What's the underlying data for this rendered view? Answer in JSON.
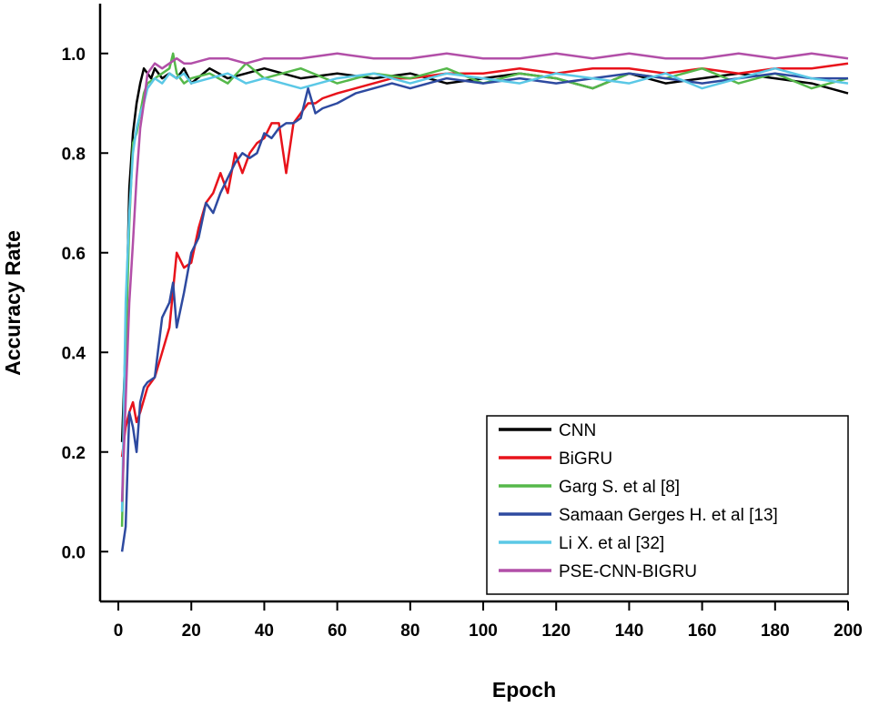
{
  "chart_data": {
    "type": "line",
    "title": "",
    "xlabel": "Epoch",
    "ylabel": "Accuracy Rate",
    "xlim": [
      -5,
      200
    ],
    "ylim": [
      -0.1,
      1.1
    ],
    "xticks": [
      0,
      20,
      40,
      60,
      80,
      100,
      120,
      140,
      160,
      180,
      200
    ],
    "yticks": [
      0.0,
      0.2,
      0.4,
      0.6,
      0.8,
      1.0
    ],
    "xtick_labels": [
      "0",
      "20",
      "40",
      "60",
      "80",
      "100",
      "120",
      "140",
      "160",
      "180",
      "200"
    ],
    "ytick_labels": [
      "0.0",
      "0.2",
      "0.4",
      "0.6",
      "0.8",
      "1.0"
    ],
    "legend_position": "bottom-right",
    "series": [
      {
        "name": "CNN",
        "color": "#000000",
        "x": [
          1,
          2,
          3,
          4,
          5,
          6,
          7,
          8,
          9,
          10,
          12,
          14,
          16,
          18,
          20,
          25,
          30,
          35,
          40,
          50,
          60,
          70,
          80,
          90,
          100,
          110,
          120,
          130,
          140,
          150,
          160,
          170,
          180,
          190,
          200
        ],
        "y": [
          0.22,
          0.42,
          0.73,
          0.84,
          0.9,
          0.94,
          0.97,
          0.96,
          0.95,
          0.97,
          0.95,
          0.96,
          0.95,
          0.97,
          0.94,
          0.97,
          0.95,
          0.96,
          0.97,
          0.95,
          0.96,
          0.95,
          0.96,
          0.94,
          0.95,
          0.96,
          0.95,
          0.93,
          0.96,
          0.94,
          0.95,
          0.96,
          0.95,
          0.94,
          0.92
        ]
      },
      {
        "name": "BiGRU",
        "color": "#e8131b",
        "x": [
          1,
          2,
          3,
          4,
          5,
          6,
          8,
          10,
          12,
          14,
          16,
          18,
          20,
          22,
          24,
          26,
          28,
          30,
          32,
          34,
          36,
          38,
          40,
          42,
          44,
          46,
          48,
          50,
          52,
          54,
          56,
          60,
          65,
          70,
          75,
          80,
          90,
          100,
          110,
          120,
          130,
          140,
          150,
          160,
          170,
          180,
          190,
          200
        ],
        "y": [
          0.19,
          0.25,
          0.28,
          0.3,
          0.26,
          0.28,
          0.33,
          0.35,
          0.4,
          0.45,
          0.6,
          0.57,
          0.58,
          0.65,
          0.7,
          0.72,
          0.76,
          0.72,
          0.8,
          0.76,
          0.8,
          0.82,
          0.83,
          0.86,
          0.86,
          0.76,
          0.86,
          0.88,
          0.9,
          0.9,
          0.91,
          0.92,
          0.93,
          0.94,
          0.95,
          0.95,
          0.96,
          0.96,
          0.97,
          0.96,
          0.97,
          0.97,
          0.96,
          0.97,
          0.96,
          0.97,
          0.97,
          0.98
        ]
      },
      {
        "name": "Garg S. et al [8]",
        "color": "#55b84a",
        "x": [
          1,
          2,
          3,
          4,
          5,
          6,
          7,
          8,
          10,
          12,
          14,
          15,
          16,
          18,
          20,
          25,
          30,
          35,
          40,
          50,
          60,
          70,
          80,
          90,
          100,
          110,
          120,
          130,
          140,
          150,
          160,
          170,
          180,
          190,
          200
        ],
        "y": [
          0.05,
          0.4,
          0.66,
          0.82,
          0.84,
          0.88,
          0.92,
          0.94,
          0.95,
          0.96,
          0.97,
          1.0,
          0.96,
          0.94,
          0.95,
          0.96,
          0.94,
          0.98,
          0.95,
          0.97,
          0.94,
          0.96,
          0.95,
          0.97,
          0.94,
          0.96,
          0.95,
          0.93,
          0.96,
          0.95,
          0.97,
          0.94,
          0.96,
          0.93,
          0.95
        ]
      },
      {
        "name": "Samaan Gerges H. et al [13]",
        "color": "#2e4aa0",
        "x": [
          1,
          2,
          3,
          4,
          5,
          6,
          7,
          8,
          10,
          12,
          14,
          15,
          16,
          18,
          20,
          22,
          24,
          26,
          28,
          30,
          32,
          34,
          36,
          38,
          40,
          42,
          44,
          46,
          48,
          50,
          52,
          54,
          56,
          60,
          65,
          70,
          75,
          80,
          90,
          100,
          110,
          120,
          130,
          140,
          150,
          160,
          170,
          180,
          190,
          200
        ],
        "y": [
          0.0,
          0.05,
          0.28,
          0.25,
          0.2,
          0.3,
          0.33,
          0.34,
          0.35,
          0.47,
          0.5,
          0.54,
          0.45,
          0.52,
          0.6,
          0.63,
          0.7,
          0.68,
          0.72,
          0.75,
          0.78,
          0.8,
          0.79,
          0.8,
          0.84,
          0.83,
          0.85,
          0.86,
          0.86,
          0.87,
          0.93,
          0.88,
          0.89,
          0.9,
          0.92,
          0.93,
          0.94,
          0.93,
          0.95,
          0.94,
          0.95,
          0.94,
          0.95,
          0.96,
          0.95,
          0.94,
          0.95,
          0.96,
          0.95,
          0.95
        ]
      },
      {
        "name": "Li X. et al [32]",
        "color": "#5bc8e6",
        "x": [
          1,
          2,
          3,
          4,
          5,
          6,
          7,
          8,
          10,
          12,
          14,
          16,
          18,
          20,
          25,
          30,
          35,
          40,
          50,
          60,
          70,
          80,
          90,
          100,
          110,
          120,
          130,
          140,
          150,
          160,
          170,
          180,
          190,
          200
        ],
        "y": [
          0.08,
          0.5,
          0.68,
          0.8,
          0.85,
          0.88,
          0.9,
          0.93,
          0.95,
          0.94,
          0.96,
          0.95,
          0.96,
          0.94,
          0.95,
          0.96,
          0.94,
          0.95,
          0.93,
          0.95,
          0.96,
          0.94,
          0.96,
          0.95,
          0.94,
          0.96,
          0.95,
          0.94,
          0.96,
          0.93,
          0.95,
          0.97,
          0.95,
          0.94
        ]
      },
      {
        "name": "PSE-CNN-BIGRU",
        "color": "#b24fa8",
        "x": [
          1,
          2,
          3,
          4,
          5,
          6,
          7,
          8,
          10,
          12,
          14,
          16,
          18,
          20,
          25,
          30,
          35,
          40,
          50,
          60,
          70,
          80,
          90,
          100,
          110,
          120,
          130,
          140,
          150,
          160,
          170,
          180,
          190,
          200
        ],
        "y": [
          0.1,
          0.3,
          0.5,
          0.62,
          0.75,
          0.85,
          0.9,
          0.96,
          0.98,
          0.97,
          0.98,
          0.99,
          0.98,
          0.98,
          0.99,
          0.99,
          0.98,
          0.99,
          0.99,
          1.0,
          0.99,
          0.99,
          1.0,
          0.99,
          0.99,
          1.0,
          0.99,
          1.0,
          0.99,
          0.99,
          1.0,
          0.99,
          1.0,
          0.99
        ]
      }
    ]
  }
}
